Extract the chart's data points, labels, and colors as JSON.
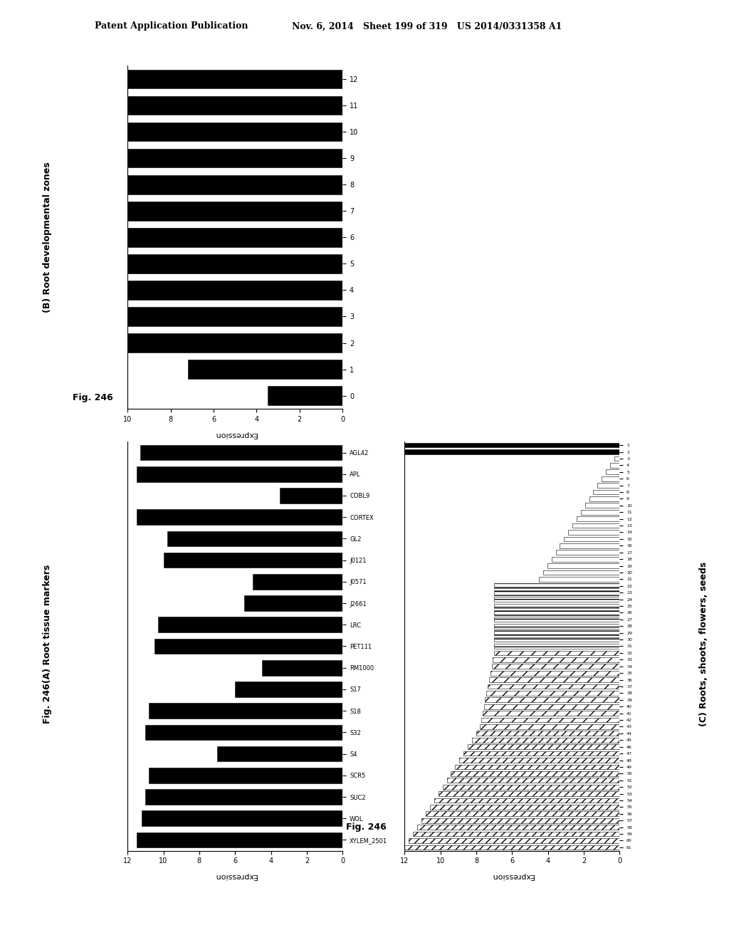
{
  "fig_title_line1": "Patent Application Publication",
  "fig_title_line2": "Nov. 6, 2014   Sheet 199 of 319   US 2014/0331358 A1",
  "panelB_ylabel_rotated": "(B) Root developmental zones",
  "panelB_fig_label": "Fig. 246",
  "panelB_xlabel": "Expression",
  "panelB_xlim": [
    0,
    10
  ],
  "panelB_yticks": [
    0,
    1,
    2,
    3,
    4,
    5,
    6,
    7,
    8,
    9,
    10,
    11,
    12
  ],
  "panelB_xticks": [
    0,
    2,
    4,
    6,
    8,
    10
  ],
  "panelB_values": [
    3.5,
    7.2,
    10.0,
    10.0,
    10.0,
    10.0,
    10.0,
    10.0,
    10.0,
    10.0,
    10.0,
    10.0,
    10.0
  ],
  "panelA_fig_label": "Fig. 246(A) Root tissue markers",
  "panelA_xlabel": "Expression",
  "panelA_xlim": [
    0,
    12
  ],
  "panelA_xticks": [
    0,
    2,
    4,
    6,
    8,
    10,
    12
  ],
  "panelA_labels": [
    "XYLEM_2501",
    "WOL",
    "SUC2",
    "SCR5",
    "S4",
    "S32",
    "S18",
    "S17",
    "RM1000",
    "PET111",
    "LRC",
    "J2661",
    "J0571",
    "J0121",
    "GL2",
    "CORTEX",
    "COBL9",
    "APL",
    "AGL42"
  ],
  "panelA_values": [
    11.5,
    11.2,
    11.0,
    10.8,
    7.0,
    11.0,
    10.8,
    6.0,
    4.5,
    10.5,
    10.3,
    5.5,
    5.0,
    10.0,
    9.8,
    11.5,
    3.5,
    11.5,
    11.3
  ],
  "panelC_ylabel_rotated": "(C) Roots, shoots, flowers, seeds",
  "panelC_fig_label": "Fig. 246",
  "panelC_xlabel": "Expression",
  "panelC_xlim": [
    0,
    12
  ],
  "panelC_xticks": [
    0,
    2,
    4,
    6,
    8,
    10,
    12
  ],
  "background_color": "#ffffff",
  "bar_color": "#000000"
}
